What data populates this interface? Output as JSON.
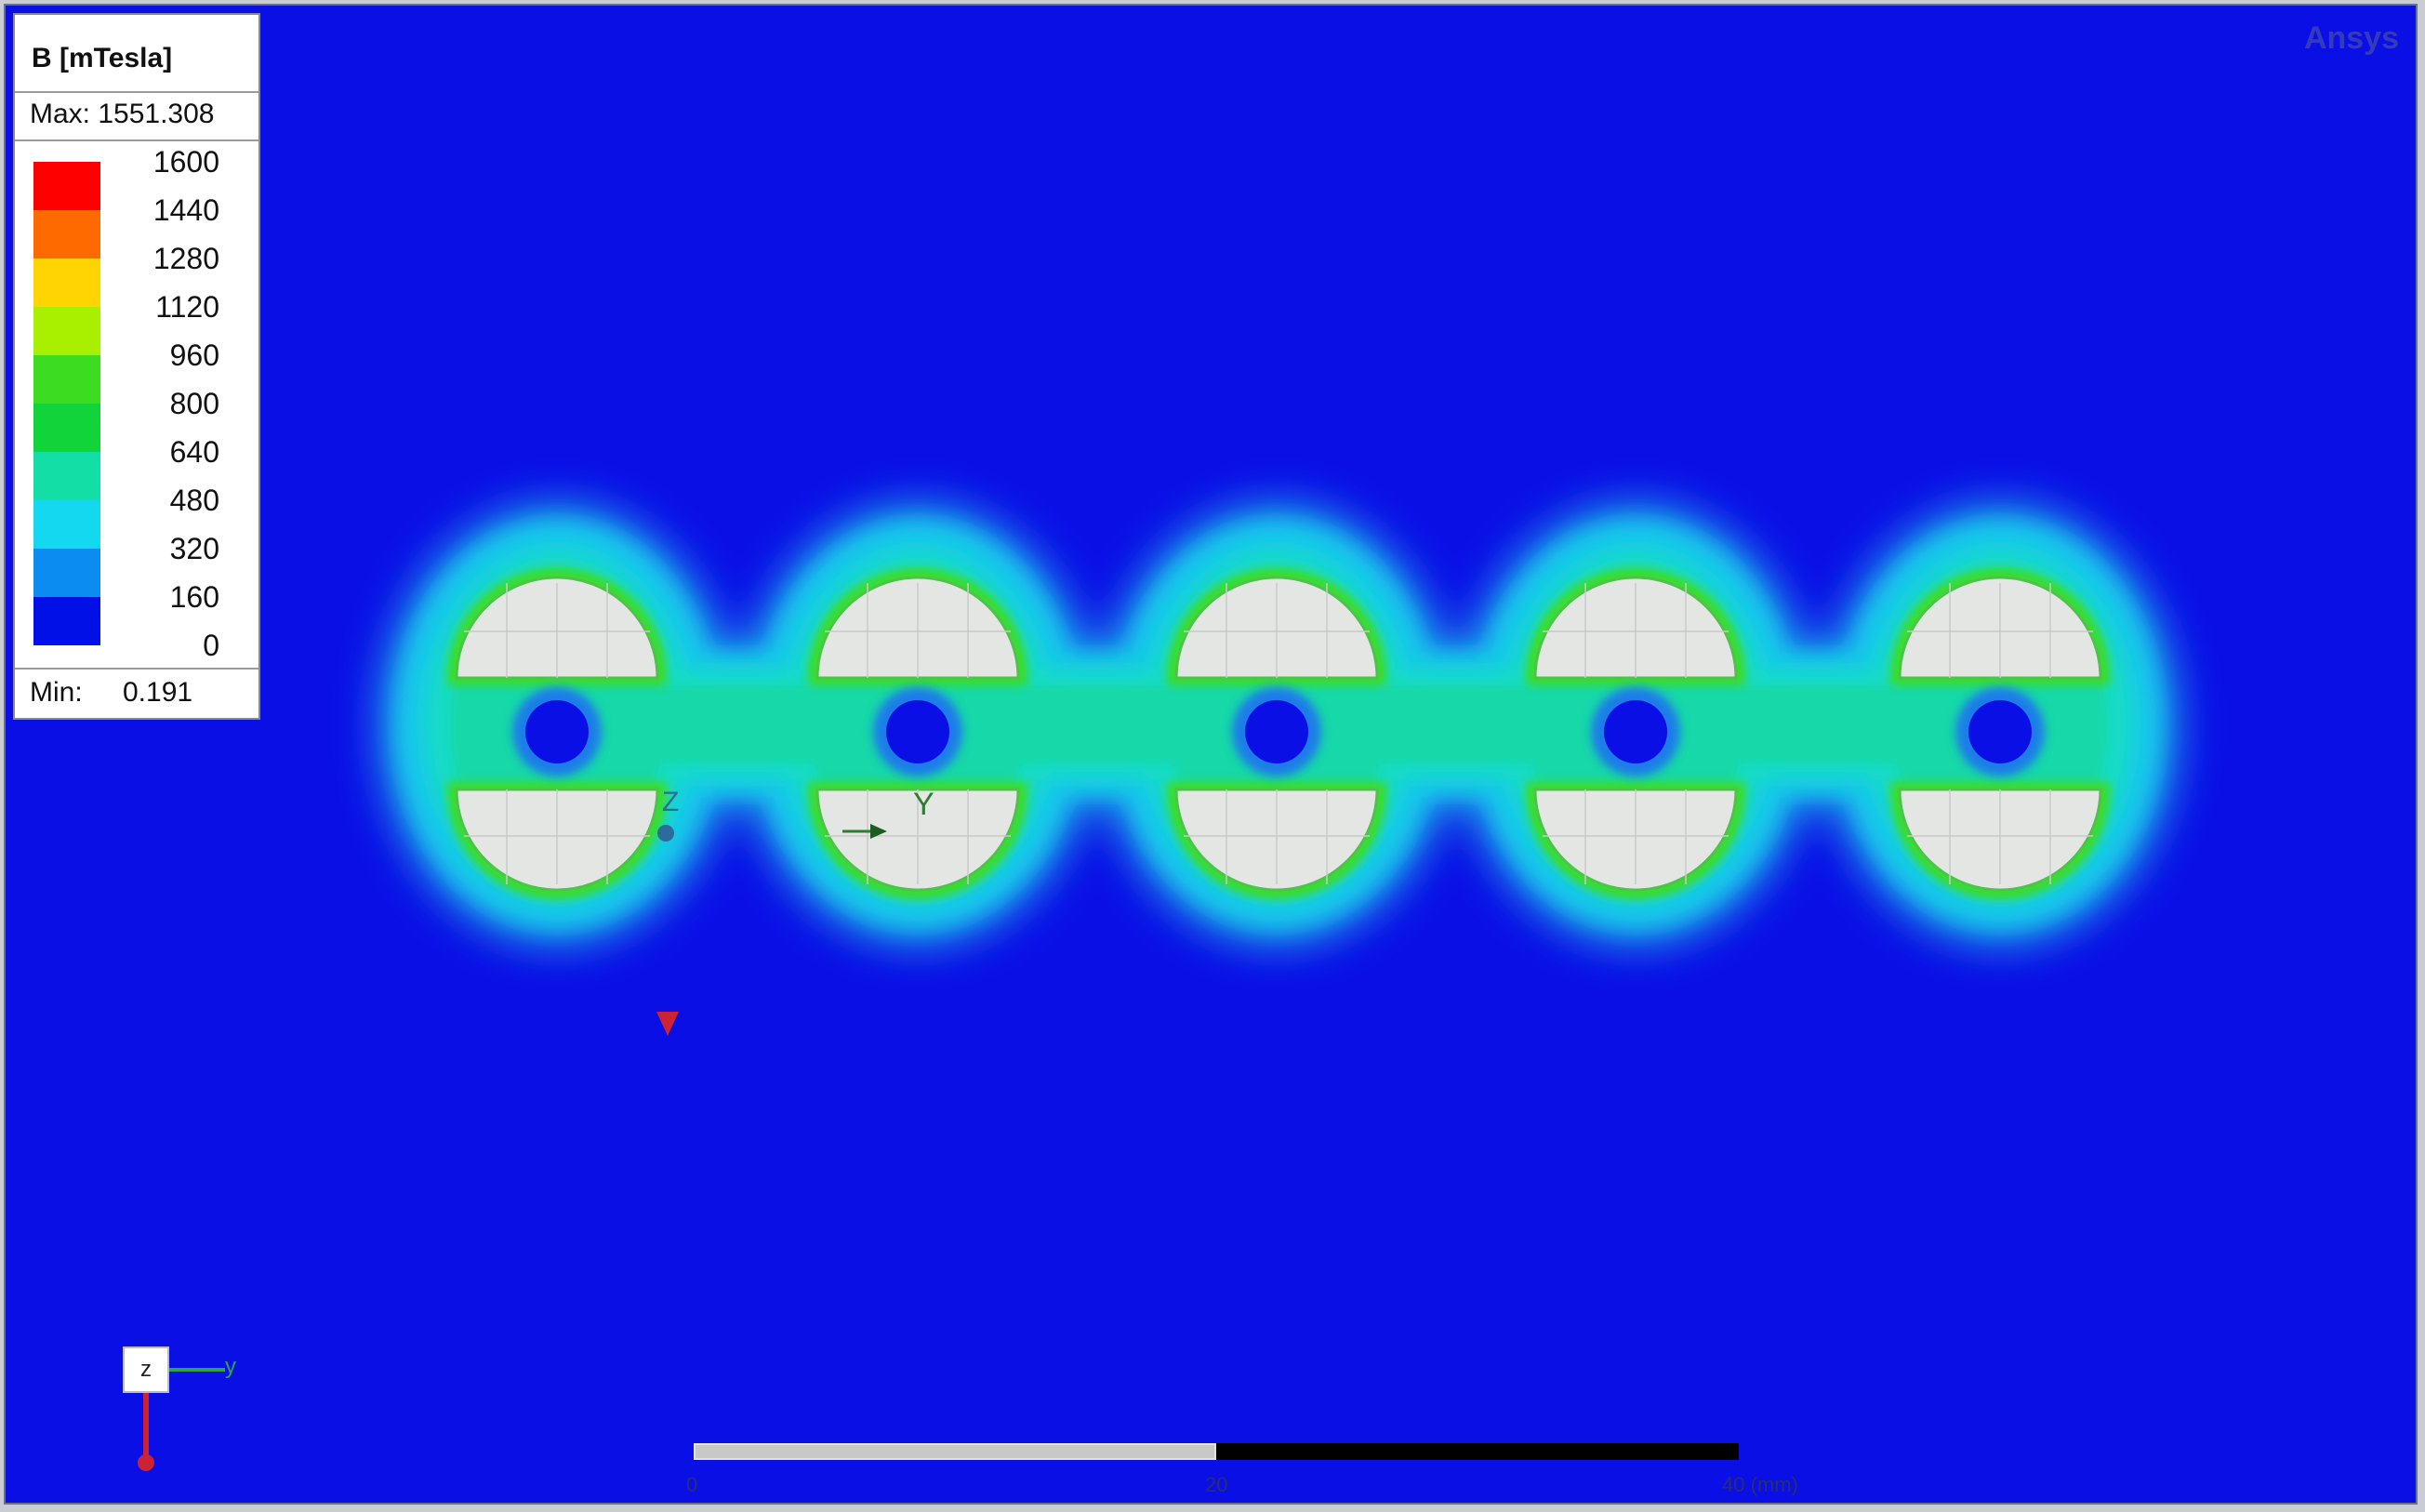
{
  "legend": {
    "title": "B [mTesla]",
    "max_label": "Max: 1551.308",
    "min_label": "Min:",
    "min_value": "0.191",
    "ticks": [
      "1600",
      "1440",
      "1280",
      "1120",
      "960",
      "800",
      "640",
      "480",
      "320",
      "160",
      "0"
    ],
    "colors": [
      "#ff0000",
      "#ff6a00",
      "#ffd400",
      "#a8f000",
      "#3cdc20",
      "#10d43a",
      "#12dea6",
      "#14d8f0",
      "#0a8cf0",
      "#0010e6"
    ]
  },
  "brand": "Ansys",
  "viewport": {
    "background": "#0a0fe6",
    "model_axis_labels": {
      "y": "Y",
      "z": "Z"
    }
  },
  "triad": {
    "z_label": "z",
    "y_label": "y"
  },
  "scale_bar": {
    "labels": [
      "0",
      "20",
      "40 (mm)"
    ]
  }
}
